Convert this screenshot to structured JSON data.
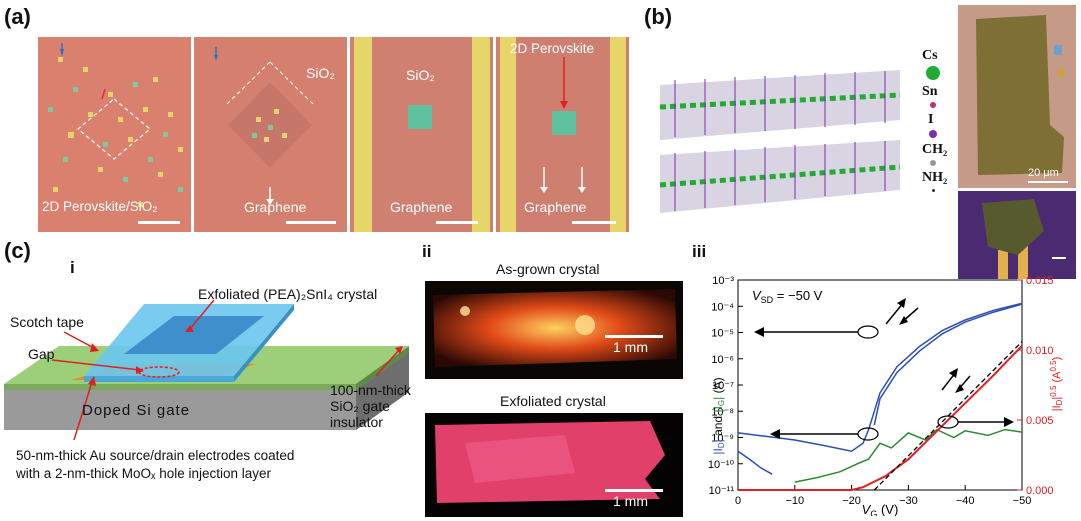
{
  "panel_a": {
    "letter": "(a)",
    "tiles": [
      {
        "label": "2D Perovskite/SiO₂"
      },
      {
        "label_top": "SiO₂",
        "label_bottom": "Graphene"
      },
      {
        "label_top": "SiO₂",
        "label_bottom": "Graphene"
      },
      {
        "label_top": "2D Perovskite",
        "label_bottom": "Graphene"
      }
    ]
  },
  "panel_b": {
    "letter": "(b)",
    "legend": [
      "Cs",
      "Sn",
      "I",
      "CH₂",
      "NH₂"
    ],
    "legend_colors": [
      "#22aa33",
      "#c03060",
      "#7a2fb0",
      "#999999",
      "#333333"
    ],
    "scale_label": "20 μm"
  },
  "panel_c": {
    "letter": "(c)",
    "sub_i": "i",
    "sub_ii": "ii",
    "sub_iii": "iii",
    "schematic": {
      "crystal_label": "Exfoliated (PEA)₂SnI₄ crystal",
      "tape_label": "Scotch tape",
      "gap_label": "Gap",
      "oxide_label_1": "100-nm-thick",
      "oxide_label_2": "SiO₂ gate",
      "oxide_label_3": "insulator",
      "gate_label": "Doped Si gate",
      "electrode_label_1": "50-nm-thick Au source/drain electrodes coated",
      "electrode_label_2": "with a 2-nm-thick MoOₓ hole injection layer"
    },
    "photos": {
      "top_title": "As-grown crystal",
      "bottom_title": "Exfoliated crystal",
      "scale_label": "1 mm"
    }
  },
  "chart_data": {
    "type": "line",
    "annotation": "V_SD = −50 V",
    "xlabel": "V_G (V)",
    "ylabel_left": "|I_D| and |I_G| (A)",
    "ylabel_right": "|I_D|^0.5 (A^0.5)",
    "xlim": [
      0,
      -50
    ],
    "x_ticks": [
      "0",
      "−10",
      "−20",
      "−30",
      "−40",
      "−50"
    ],
    "ylim_left_log": [
      1e-11,
      0.001
    ],
    "y_ticks_left": [
      "10⁻¹¹",
      "10⁻¹⁰",
      "10⁻⁹",
      "10⁻⁸",
      "10⁻⁷",
      "10⁻⁶",
      "10⁻⁵",
      "10⁻⁴",
      "10⁻³"
    ],
    "ylim_right": [
      0,
      0.015
    ],
    "y_ticks_right": [
      "0.000",
      "0.005",
      "0.010",
      "0.015"
    ],
    "series": [
      {
        "color": "#2b4fb5",
        "axis": "left",
        "x": [
          0,
          -5,
          -10,
          -15,
          -20,
          -22,
          -23,
          -24,
          -25,
          -28,
          -32,
          -36,
          -40,
          -45,
          -50
        ],
        "y": [
          1.5e-09,
          1.1e-09,
          8e-10,
          5e-10,
          3e-10,
          6e-10,
          2e-09,
          1e-08,
          5e-08,
          5e-07,
          3e-06,
          1.2e-05,
          3e-05,
          7e-05,
          0.00013
        ]
      },
      {
        "color": "#2b4fb5",
        "axis": "left",
        "x": [
          -24,
          -25,
          -28,
          -32,
          -36,
          -40,
          -45,
          -50
        ],
        "y": [
          3e-09,
          3e-08,
          3e-07,
          2e-06,
          9e-06,
          2.5e-05,
          6e-05,
          0.00012
        ]
      },
      {
        "color": "#2b4fb5",
        "axis": "left",
        "x": [
          0,
          -2,
          -4,
          -6
        ],
        "y": [
          3e-10,
          1.5e-10,
          7e-11,
          4e-11
        ]
      },
      {
        "color": "#2e8b2e",
        "axis": "left",
        "x": [
          -10,
          -14,
          -18,
          -21,
          -23,
          -25,
          -27,
          -30,
          -33,
          -35,
          -38,
          -40,
          -44,
          -47,
          -50
        ],
        "y": [
          2e-11,
          3e-11,
          5e-11,
          1e-10,
          1.5e-10,
          6e-10,
          4e-10,
          1.5e-09,
          8e-10,
          2e-09,
          1e-09,
          1.8e-09,
          1.2e-09,
          2e-09,
          1.6e-09
        ]
      },
      {
        "color": "#e02020",
        "axis": "right",
        "x": [
          0,
          -10,
          -20,
          -22,
          -24,
          -26,
          -28,
          -30,
          -35,
          -40,
          -45,
          -50
        ],
        "y": [
          0.0,
          0.0,
          0.0,
          0.0002,
          0.0006,
          0.001,
          0.0016,
          0.0022,
          0.0042,
          0.0062,
          0.0082,
          0.0103
        ]
      }
    ],
    "fit_line": {
      "x": [
        -24,
        -50
      ],
      "y": [
        0.0,
        0.0106
      ],
      "style": "dashed",
      "axis": "right"
    }
  }
}
